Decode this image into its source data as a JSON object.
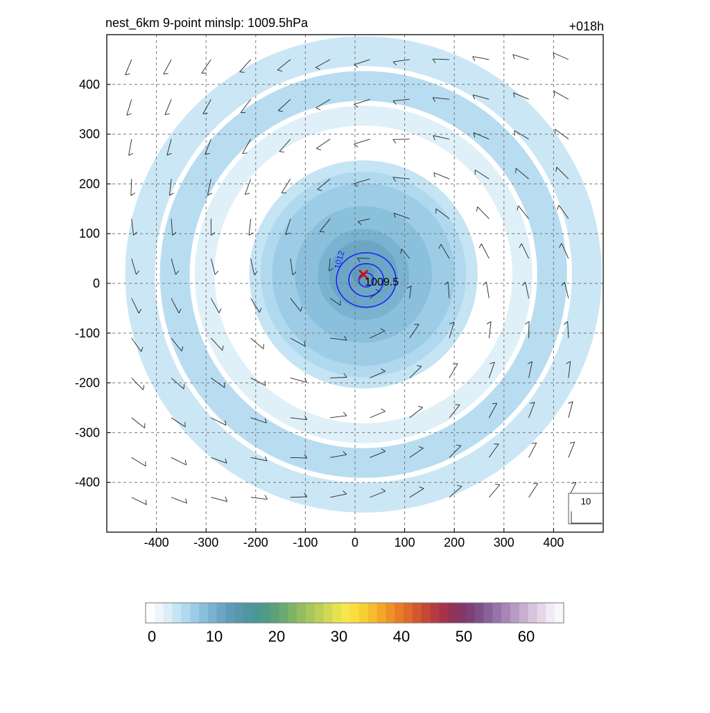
{
  "title": "nest_6km  9-point minslp: 1009.5hPa",
  "time_label": "+018h",
  "chart_data": {
    "type": "heatmap",
    "variable_note": "",
    "xlim": [
      -500,
      500
    ],
    "ylim": [
      -500,
      500
    ],
    "x_ticks": [
      -400,
      -300,
      -200,
      -100,
      0,
      100,
      200,
      300,
      400
    ],
    "y_ticks": [
      400,
      300,
      200,
      100,
      0,
      -100,
      -200,
      -300,
      -400
    ],
    "grid": true,
    "center": {
      "x": 17,
      "y": 18,
      "label": "1009.5",
      "marker": "red-x"
    },
    "contours": [
      {
        "level": 1012,
        "label": "1012",
        "color": "#1a1aff"
      }
    ],
    "wind_speed_rings": [
      {
        "r_outer": 480,
        "r_inner": 420,
        "level": 3
      },
      {
        "r_outer": 410,
        "r_inner": 350,
        "level": 5
      },
      {
        "r_outer": 340,
        "r_inner": 300,
        "level": 2
      },
      {
        "r_outer": 230,
        "r_inner": 0,
        "level": 12
      }
    ],
    "barb_reference": "10",
    "colorbar": {
      "ticks": [
        "0",
        "10",
        "20",
        "30",
        "40",
        "50",
        "60"
      ],
      "min": -1,
      "max": 66,
      "colors": [
        "#ffffff",
        "#eef6fb",
        "#dbeef8",
        "#c5e4f4",
        "#b0d9ef",
        "#9dcde6",
        "#8ac0dc",
        "#79b3d0",
        "#6ba7c4",
        "#5f9cb9",
        "#5798ac",
        "#4e97a0",
        "#4a9893",
        "#4e9c85",
        "#5ba27a",
        "#6aaa70",
        "#7db467",
        "#92bd60",
        "#a7c65b",
        "#bccf56",
        "#d1d952",
        "#e6e24f",
        "#f5e84a",
        "#f8de3f",
        "#f7cf35",
        "#f5bc2d",
        "#f2a728",
        "#ee9226",
        "#e87d27",
        "#df6a2a",
        "#d3582f",
        "#c54836",
        "#b63b40",
        "#a5344a",
        "#933157",
        "#843667",
        "#7d4079",
        "#7f4f8a",
        "#8a6199",
        "#9874a8",
        "#a887b6",
        "#b89bc3",
        "#c8afd0",
        "#d7c3dd",
        "#e5d7e9",
        "#f2ebf4",
        "#faf7fb"
      ]
    }
  }
}
